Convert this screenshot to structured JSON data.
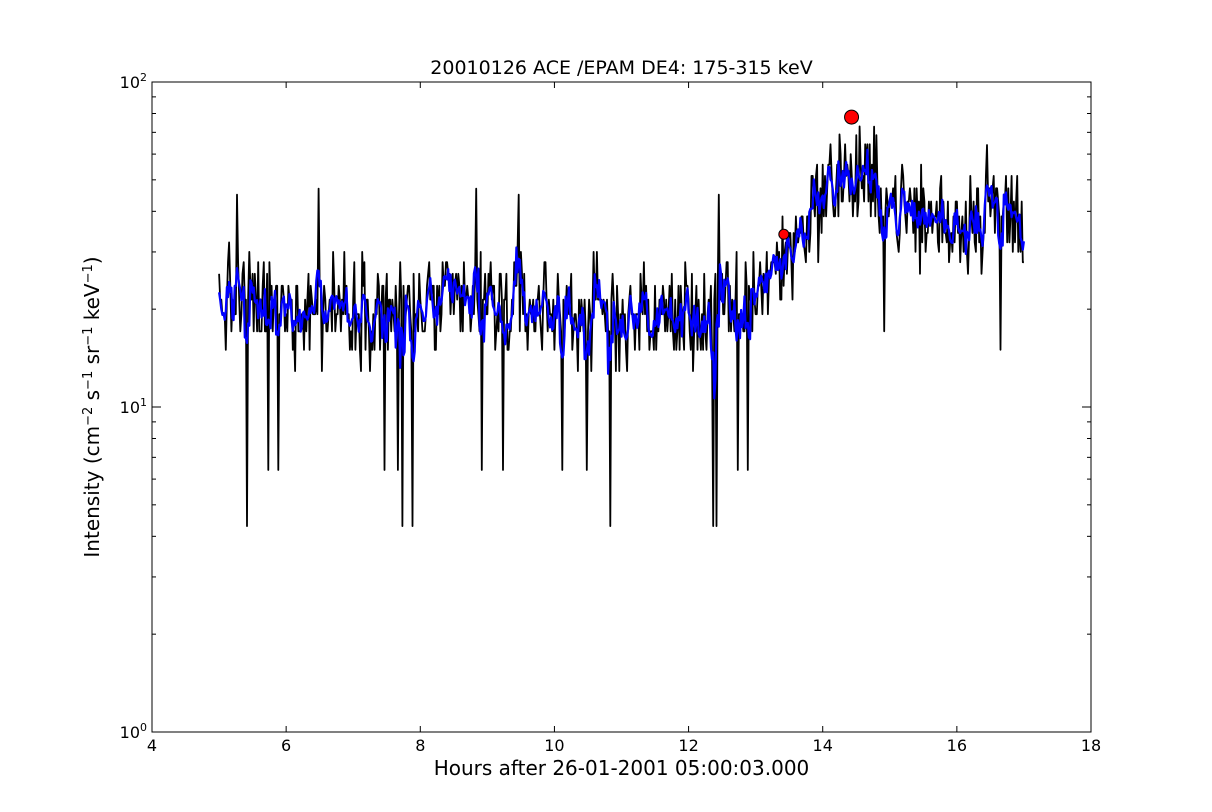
{
  "chart_data": {
    "type": "line",
    "title": "20010126 ACE /EPAM DE4: 175-315 keV",
    "xlabel": "Hours after 26-01-2001 05:00:03.000",
    "ylabel": {
      "prefix": "Intensity (cm",
      "exp1": "−2",
      "mid1": " s",
      "exp2": "−1",
      "mid2": " sr",
      "exp3": "−1",
      "mid3": " keV",
      "exp4": "−1",
      "suffix": ")"
    },
    "xlim": [
      4,
      18
    ],
    "ylim": [
      1,
      100
    ],
    "yscale": "log",
    "grid": false,
    "x_ticks": [
      "4",
      "6",
      "8",
      "10",
      "12",
      "14",
      "16",
      "18"
    ],
    "y_ticks": [
      {
        "value": 1,
        "base": "10",
        "exp": "0"
      },
      {
        "value": 10,
        "base": "10",
        "exp": "1"
      },
      {
        "value": 100,
        "base": "10",
        "exp": "2"
      }
    ],
    "series": [
      {
        "kind": "raw",
        "color": "#000000",
        "x_start": 5.0,
        "x_end": 17.0,
        "anchors": [
          {
            "x": 5.0,
            "y": 21
          },
          {
            "x": 6.0,
            "y": 20
          },
          {
            "x": 7.0,
            "y": 21
          },
          {
            "x": 8.0,
            "y": 20
          },
          {
            "x": 9.0,
            "y": 21
          },
          {
            "x": 10.0,
            "y": 20
          },
          {
            "x": 11.0,
            "y": 19
          },
          {
            "x": 12.0,
            "y": 19
          },
          {
            "x": 12.7,
            "y": 20
          },
          {
            "x": 13.0,
            "y": 23
          },
          {
            "x": 13.3,
            "y": 27
          },
          {
            "x": 13.6,
            "y": 32
          },
          {
            "x": 13.9,
            "y": 43
          },
          {
            "x": 14.3,
            "y": 50
          },
          {
            "x": 14.7,
            "y": 48
          },
          {
            "x": 15.0,
            "y": 43
          },
          {
            "x": 15.5,
            "y": 38
          },
          {
            "x": 16.0,
            "y": 37
          },
          {
            "x": 16.5,
            "y": 41
          },
          {
            "x": 17.0,
            "y": 38
          }
        ],
        "levels": [
          4.3,
          6.4,
          8.6,
          10.7,
          12.9,
          15.0,
          17.1,
          19.3,
          21.4,
          23.6,
          25.7,
          27.9,
          30.0,
          32.1,
          34.3,
          38.6,
          42.9,
          47.1,
          51.4,
          55.7,
          60.0,
          64.3,
          68.6,
          72.9
        ],
        "dips": [
          {
            "x": 5.42,
            "y": 4.3
          },
          {
            "x": 5.73,
            "y": 6.4
          },
          {
            "x": 5.88,
            "y": 6.4
          },
          {
            "x": 7.46,
            "y": 6.4
          },
          {
            "x": 7.67,
            "y": 6.4
          },
          {
            "x": 7.73,
            "y": 4.3
          },
          {
            "x": 7.89,
            "y": 4.3
          },
          {
            "x": 8.92,
            "y": 6.4
          },
          {
            "x": 9.23,
            "y": 6.4
          },
          {
            "x": 10.12,
            "y": 6.4
          },
          {
            "x": 10.48,
            "y": 6.4
          },
          {
            "x": 10.84,
            "y": 4.3
          },
          {
            "x": 12.36,
            "y": 4.3
          },
          {
            "x": 12.41,
            "y": 4.3
          },
          {
            "x": 12.73,
            "y": 6.4
          },
          {
            "x": 12.89,
            "y": 6.4
          },
          {
            "x": 16.65,
            "y": 15.0
          },
          {
            "x": 14.92,
            "y": 17.1
          }
        ],
        "peaks": [
          {
            "x": 5.27,
            "y": 45
          },
          {
            "x": 6.48,
            "y": 47
          },
          {
            "x": 8.83,
            "y": 47
          },
          {
            "x": 9.46,
            "y": 45
          },
          {
            "x": 12.45,
            "y": 45
          },
          {
            "x": 14.25,
            "y": 69
          },
          {
            "x": 14.55,
            "y": 73
          },
          {
            "x": 16.45,
            "y": 64
          }
        ]
      },
      {
        "kind": "smoothed",
        "color": "#0000ff",
        "window": 5
      }
    ],
    "markers": [
      {
        "x": 13.42,
        "y": 34,
        "size": "small",
        "color": "#ff0000"
      },
      {
        "x": 14.43,
        "y": 78,
        "size": "large",
        "color": "#ff0000"
      }
    ]
  }
}
